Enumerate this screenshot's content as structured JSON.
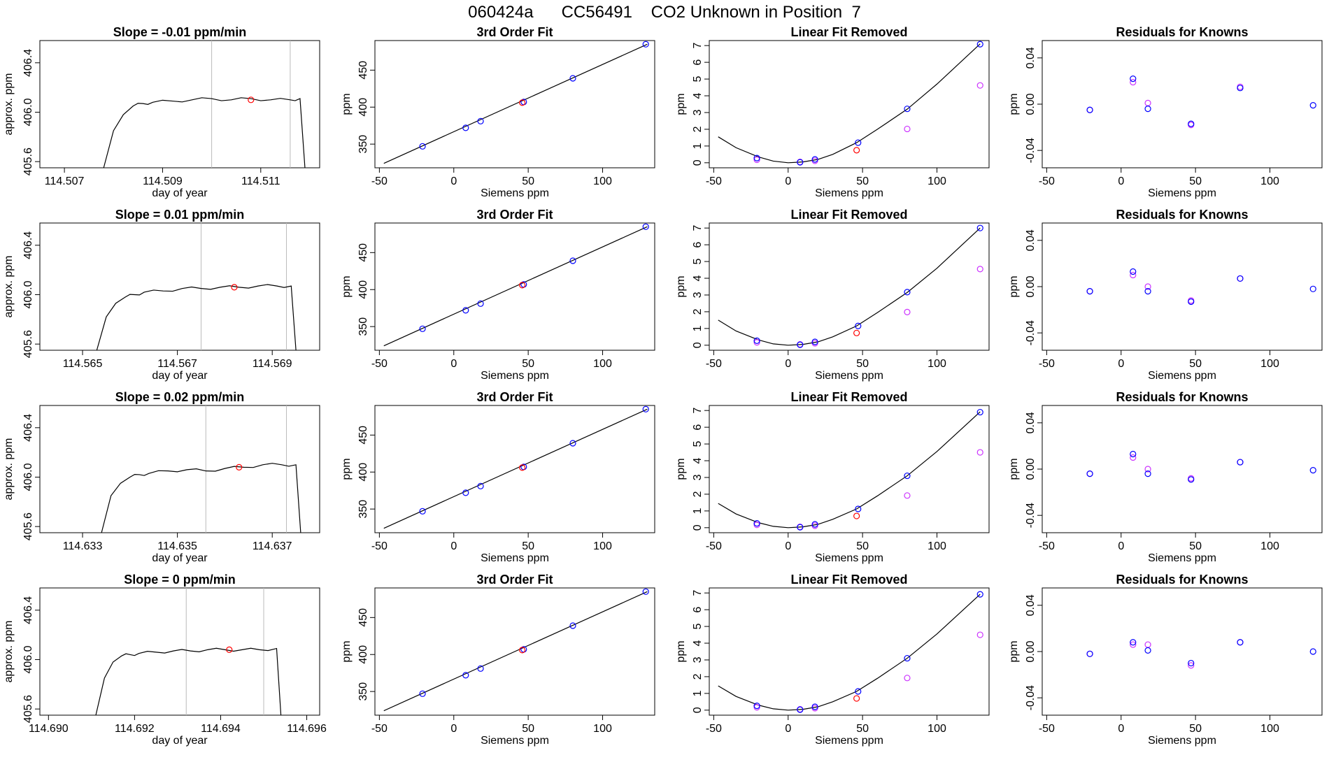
{
  "figure_title": "060424a      CC56491    CO2 Unknown in Position  7",
  "colors": {
    "line": "#000000",
    "unknown": "#ff0000",
    "known_fit": "#0000ff",
    "known_alt": "#cc33ff",
    "gridline": "#bbbbbb"
  },
  "chart_data": [
    {
      "row": 0,
      "col": 0,
      "type": "line",
      "title": "Slope =  -0.01  ppm/min",
      "xlabel": "day of year",
      "ylabel": "approx. ppm",
      "xlim": [
        114.5065,
        114.5122
      ],
      "ylim": [
        405.55,
        406.58
      ],
      "xticks": [
        "114.507",
        "114.509",
        "114.511"
      ],
      "yticks": [
        "405.6",
        "406.0",
        "406.4"
      ],
      "vlines": [
        114.51,
        114.5116
      ],
      "series": [
        {
          "x": [
            114.5078,
            114.508,
            114.5082,
            114.5084,
            114.5086,
            114.5088,
            114.5092,
            114.5096,
            114.51,
            114.5104,
            114.5108,
            114.5112,
            114.5116,
            114.5118,
            114.5119
          ],
          "y": [
            405.55,
            405.85,
            405.98,
            406.05,
            406.07,
            406.08,
            406.09,
            406.1,
            406.11,
            406.1,
            406.11,
            406.1,
            406.1,
            406.11,
            405.55
          ]
        }
      ],
      "unknown_point": {
        "x": 114.5108,
        "y": 406.1
      }
    },
    {
      "row": 0,
      "col": 1,
      "type": "scatter",
      "title": "3rd Order Fit",
      "xlabel": "Siemens ppm",
      "ylabel": "ppm",
      "xlim": [
        -53,
        135
      ],
      "ylim": [
        318,
        490
      ],
      "xticks": [
        "-50",
        "0",
        "50",
        "100"
      ],
      "yticks": [
        "350",
        "400",
        "450"
      ],
      "fit_line": {
        "x": [
          -47,
          130
        ],
        "y": [
          324,
          485
        ]
      },
      "known_points": {
        "x": [
          -21,
          8,
          18,
          47,
          80,
          129
        ],
        "y": [
          347,
          372,
          381,
          407,
          439,
          485
        ]
      },
      "unknown_point": {
        "x": 46,
        "y": 406
      }
    },
    {
      "row": 0,
      "col": 2,
      "type": "scatter",
      "title": "Linear Fit Removed",
      "xlabel": "Siemens ppm",
      "ylabel": "ppm",
      "xlim": [
        -53,
        135
      ],
      "ylim": [
        -0.3,
        7.3
      ],
      "xticks": [
        "-50",
        "0",
        "50",
        "100"
      ],
      "yticks": [
        "0",
        "1",
        "2",
        "3",
        "4",
        "5",
        "6",
        "7"
      ],
      "curve": {
        "x": [
          -47,
          -35,
          -20,
          -10,
          0,
          10,
          20,
          30,
          46,
          60,
          80,
          100,
          129
        ],
        "y": [
          1.55,
          0.9,
          0.35,
          0.1,
          0.0,
          0.05,
          0.2,
          0.5,
          1.2,
          2.0,
          3.2,
          4.7,
          7.1
        ]
      },
      "known_points": {
        "x": [
          -21,
          8,
          18,
          47,
          80,
          129
        ],
        "y": [
          0.28,
          0.03,
          0.2,
          1.2,
          3.22,
          7.08
        ]
      },
      "alt_points": {
        "x": [
          -21,
          8,
          18,
          80,
          129
        ],
        "y": [
          0.18,
          0.05,
          0.12,
          2.02,
          4.62
        ]
      },
      "unknown_point": {
        "x": 46,
        "y": 0.75
      }
    },
    {
      "row": 0,
      "col": 3,
      "type": "scatter",
      "title": "Residuals for Knowns",
      "xlabel": "Siemens ppm",
      "ylabel": "ppm",
      "xlim": [
        -53,
        135
      ],
      "ylim": [
        -0.055,
        0.055
      ],
      "xticks": [
        "-50",
        "0",
        "50",
        "100"
      ],
      "yticks": [
        "-0.04",
        "0.00",
        "0.04"
      ],
      "known_points": {
        "x": [
          -21,
          8,
          18,
          47,
          80,
          129
        ],
        "y": [
          -0.005,
          0.022,
          -0.004,
          -0.017,
          0.014,
          -0.001
        ]
      },
      "alt_points": {
        "x": [
          -21,
          8,
          18,
          47,
          80
        ],
        "y": [
          -0.005,
          0.019,
          0.001,
          -0.018,
          0.015
        ]
      }
    },
    {
      "row": 1,
      "col": 0,
      "type": "line",
      "title": "Slope =  0.01  ppm/min",
      "xlabel": "day of year",
      "ylabel": "approx. ppm",
      "xlim": [
        114.5641,
        114.57
      ],
      "ylim": [
        405.55,
        406.58
      ],
      "xticks": [
        "114.565",
        "114.567",
        "114.569"
      ],
      "yticks": [
        "405.6",
        "406.0",
        "406.4"
      ],
      "vlines": [
        114.5675,
        114.5693
      ],
      "series": [
        {
          "x": [
            114.5653,
            114.5655,
            114.5657,
            114.5659,
            114.5661,
            114.5663,
            114.5667,
            114.5671,
            114.5675,
            114.5679,
            114.5683,
            114.5687,
            114.5691,
            114.5694,
            114.5695
          ],
          "y": [
            405.55,
            405.82,
            405.93,
            405.98,
            406.0,
            406.02,
            406.03,
            406.05,
            406.05,
            406.06,
            406.06,
            406.07,
            406.07,
            406.07,
            405.55
          ]
        }
      ],
      "unknown_point": {
        "x": 114.5682,
        "y": 406.06
      }
    },
    {
      "row": 1,
      "col": 1,
      "type": "scatter",
      "title": "3rd Order Fit",
      "xlabel": "Siemens ppm",
      "ylabel": "ppm",
      "xlim": [
        -53,
        135
      ],
      "ylim": [
        318,
        490
      ],
      "xticks": [
        "-50",
        "0",
        "50",
        "100"
      ],
      "yticks": [
        "350",
        "400",
        "450"
      ],
      "fit_line": {
        "x": [
          -47,
          130
        ],
        "y": [
          324,
          485
        ]
      },
      "known_points": {
        "x": [
          -21,
          8,
          18,
          47,
          80,
          129
        ],
        "y": [
          347,
          372,
          381,
          407,
          439,
          485
        ]
      },
      "unknown_point": {
        "x": 46,
        "y": 406
      }
    },
    {
      "row": 1,
      "col": 2,
      "type": "scatter",
      "title": "Linear Fit Removed",
      "xlabel": "Siemens ppm",
      "ylabel": "ppm",
      "xlim": [
        -53,
        135
      ],
      "ylim": [
        -0.3,
        7.3
      ],
      "xticks": [
        "-50",
        "0",
        "50",
        "100"
      ],
      "yticks": [
        "0",
        "1",
        "2",
        "3",
        "4",
        "5",
        "6",
        "7"
      ],
      "curve": {
        "x": [
          -47,
          -35,
          -20,
          -10,
          0,
          10,
          20,
          30,
          46,
          60,
          80,
          100,
          129
        ],
        "y": [
          1.5,
          0.85,
          0.32,
          0.08,
          0.0,
          0.05,
          0.2,
          0.5,
          1.15,
          1.95,
          3.15,
          4.6,
          7.0
        ]
      },
      "known_points": {
        "x": [
          -21,
          8,
          18,
          47,
          80,
          129
        ],
        "y": [
          0.27,
          0.03,
          0.2,
          1.15,
          3.17,
          7.0
        ]
      },
      "alt_points": {
        "x": [
          -21,
          8,
          18,
          80,
          129
        ],
        "y": [
          0.17,
          0.05,
          0.12,
          1.98,
          4.55
        ]
      },
      "unknown_point": {
        "x": 46,
        "y": 0.73
      }
    },
    {
      "row": 1,
      "col": 3,
      "type": "scatter",
      "title": "Residuals for Knowns",
      "xlabel": "Siemens ppm",
      "ylabel": "ppm",
      "xlim": [
        -53,
        135
      ],
      "ylim": [
        -0.055,
        0.055
      ],
      "xticks": [
        "-50",
        "0",
        "50",
        "100"
      ],
      "yticks": [
        "-0.04",
        "0.00",
        "0.04"
      ],
      "known_points": {
        "x": [
          -21,
          8,
          18,
          47,
          80,
          129
        ],
        "y": [
          -0.004,
          0.013,
          -0.004,
          -0.013,
          0.007,
          -0.002
        ]
      },
      "alt_points": {
        "x": [
          -21,
          8,
          18,
          47,
          80
        ],
        "y": [
          -0.004,
          0.01,
          0.0,
          -0.012,
          0.007
        ]
      }
    },
    {
      "row": 2,
      "col": 0,
      "type": "line",
      "title": "Slope =  0.02  ppm/min",
      "xlabel": "day of year",
      "ylabel": "approx. ppm",
      "xlim": [
        114.6321,
        114.638
      ],
      "ylim": [
        405.55,
        406.58
      ],
      "xticks": [
        "114.633",
        "114.635",
        "114.637"
      ],
      "yticks": [
        "405.6",
        "406.0",
        "406.4"
      ],
      "vlines": [
        114.6356,
        114.6373
      ],
      "series": [
        {
          "x": [
            114.6334,
            114.6336,
            114.6338,
            114.634,
            114.6342,
            114.6344,
            114.6348,
            114.6352,
            114.6356,
            114.636,
            114.6364,
            114.6368,
            114.6372,
            114.6375,
            114.6376
          ],
          "y": [
            405.55,
            405.85,
            405.95,
            406.0,
            406.02,
            406.03,
            406.05,
            406.06,
            406.05,
            406.07,
            406.08,
            406.1,
            406.1,
            406.1,
            405.55
          ]
        }
      ],
      "unknown_point": {
        "x": 114.6363,
        "y": 406.08
      }
    },
    {
      "row": 2,
      "col": 1,
      "type": "scatter",
      "title": "3rd Order Fit",
      "xlabel": "Siemens ppm",
      "ylabel": "ppm",
      "xlim": [
        -53,
        135
      ],
      "ylim": [
        318,
        490
      ],
      "xticks": [
        "-50",
        "0",
        "50",
        "100"
      ],
      "yticks": [
        "350",
        "400",
        "450"
      ],
      "fit_line": {
        "x": [
          -47,
          130
        ],
        "y": [
          324,
          485
        ]
      },
      "known_points": {
        "x": [
          -21,
          8,
          18,
          47,
          80,
          129
        ],
        "y": [
          347,
          372,
          381,
          407,
          439,
          485
        ]
      },
      "unknown_point": {
        "x": 46,
        "y": 406
      }
    },
    {
      "row": 2,
      "col": 2,
      "type": "scatter",
      "title": "Linear Fit Removed",
      "xlabel": "Siemens ppm",
      "ylabel": "ppm",
      "xlim": [
        -53,
        135
      ],
      "ylim": [
        -0.3,
        7.3
      ],
      "xticks": [
        "-50",
        "0",
        "50",
        "100"
      ],
      "yticks": [
        "0",
        "1",
        "2",
        "3",
        "4",
        "5",
        "6",
        "7"
      ],
      "curve": {
        "x": [
          -47,
          -35,
          -20,
          -10,
          0,
          10,
          20,
          30,
          46,
          60,
          80,
          100,
          129
        ],
        "y": [
          1.45,
          0.82,
          0.3,
          0.08,
          0.0,
          0.05,
          0.2,
          0.5,
          1.12,
          1.9,
          3.1,
          4.55,
          6.92
        ]
      },
      "known_points": {
        "x": [
          -21,
          8,
          18,
          47,
          80,
          129
        ],
        "y": [
          0.26,
          0.03,
          0.2,
          1.12,
          3.1,
          6.9
        ]
      },
      "alt_points": {
        "x": [
          -21,
          8,
          18,
          80,
          129
        ],
        "y": [
          0.17,
          0.05,
          0.12,
          1.92,
          4.5
        ]
      },
      "unknown_point": {
        "x": 46,
        "y": 0.7
      }
    },
    {
      "row": 2,
      "col": 3,
      "type": "scatter",
      "title": "Residuals for Knowns",
      "xlabel": "Siemens ppm",
      "ylabel": "ppm",
      "xlim": [
        -53,
        135
      ],
      "ylim": [
        -0.055,
        0.055
      ],
      "xticks": [
        "-50",
        "0",
        "50",
        "100"
      ],
      "yticks": [
        "-0.04",
        "0.00",
        "0.04"
      ],
      "known_points": {
        "x": [
          -21,
          8,
          18,
          47,
          80,
          129
        ],
        "y": [
          -0.004,
          0.013,
          -0.004,
          -0.009,
          0.006,
          -0.001
        ]
      },
      "alt_points": {
        "x": [
          -21,
          8,
          18,
          47,
          80
        ],
        "y": [
          -0.004,
          0.01,
          0.0,
          -0.008,
          0.006
        ]
      }
    },
    {
      "row": 3,
      "col": 0,
      "type": "line",
      "title": "Slope =  0  ppm/min",
      "xlabel": "day of year",
      "ylabel": "approx. ppm",
      "xlim": [
        114.6898,
        114.6963
      ],
      "ylim": [
        405.55,
        406.58
      ],
      "xticks": [
        "114.690",
        "114.692",
        "114.694",
        "114.696"
      ],
      "yticks": [
        "405.6",
        "406.0",
        "406.4"
      ],
      "vlines": [
        114.6932,
        114.695
      ],
      "series": [
        {
          "x": [
            114.6911,
            114.6913,
            114.6915,
            114.6917,
            114.6919,
            114.6921,
            114.6925,
            114.6929,
            114.6933,
            114.6937,
            114.6941,
            114.6945,
            114.6949,
            114.6953,
            114.6954
          ],
          "y": [
            405.55,
            405.85,
            405.98,
            406.03,
            406.04,
            406.05,
            406.06,
            406.07,
            406.07,
            406.08,
            406.08,
            406.08,
            406.08,
            406.09,
            405.55
          ]
        }
      ],
      "unknown_point": {
        "x": 114.6942,
        "y": 406.08
      }
    },
    {
      "row": 3,
      "col": 1,
      "type": "scatter",
      "title": "3rd Order Fit",
      "xlabel": "Siemens ppm",
      "ylabel": "ppm",
      "xlim": [
        -53,
        135
      ],
      "ylim": [
        318,
        490
      ],
      "xticks": [
        "-50",
        "0",
        "50",
        "100"
      ],
      "yticks": [
        "350",
        "400",
        "450"
      ],
      "fit_line": {
        "x": [
          -47,
          130
        ],
        "y": [
          324,
          485
        ]
      },
      "known_points": {
        "x": [
          -21,
          8,
          18,
          47,
          80,
          129
        ],
        "y": [
          347,
          372,
          381,
          407,
          439,
          485
        ]
      },
      "unknown_point": {
        "x": 46,
        "y": 406
      }
    },
    {
      "row": 3,
      "col": 2,
      "type": "scatter",
      "title": "Linear Fit Removed",
      "xlabel": "Siemens ppm",
      "ylabel": "ppm",
      "xlim": [
        -53,
        135
      ],
      "ylim": [
        -0.3,
        7.3
      ],
      "xticks": [
        "-50",
        "0",
        "50",
        "100"
      ],
      "yticks": [
        "0",
        "1",
        "2",
        "3",
        "4",
        "5",
        "6",
        "7"
      ],
      "curve": {
        "x": [
          -47,
          -35,
          -20,
          -10,
          0,
          10,
          20,
          30,
          46,
          60,
          80,
          100,
          129
        ],
        "y": [
          1.45,
          0.82,
          0.3,
          0.08,
          0.0,
          0.05,
          0.2,
          0.5,
          1.12,
          1.9,
          3.1,
          4.55,
          6.92
        ]
      },
      "known_points": {
        "x": [
          -21,
          8,
          18,
          47,
          80,
          129
        ],
        "y": [
          0.26,
          0.03,
          0.2,
          1.12,
          3.1,
          6.92
        ]
      },
      "alt_points": {
        "x": [
          -21,
          8,
          18,
          80,
          129
        ],
        "y": [
          0.17,
          0.05,
          0.12,
          1.92,
          4.5
        ]
      },
      "unknown_point": {
        "x": 46,
        "y": 0.7
      }
    },
    {
      "row": 3,
      "col": 3,
      "type": "scatter",
      "title": "Residuals for Knowns",
      "xlabel": "Siemens ppm",
      "ylabel": "ppm",
      "xlim": [
        -53,
        135
      ],
      "ylim": [
        -0.055,
        0.055
      ],
      "xticks": [
        "-50",
        "0",
        "50",
        "100"
      ],
      "yticks": [
        "-0.04",
        "0.00",
        "0.04"
      ],
      "known_points": {
        "x": [
          -21,
          8,
          18,
          47,
          80,
          129
        ],
        "y": [
          -0.002,
          0.008,
          0.001,
          -0.01,
          0.008,
          0.0
        ]
      },
      "alt_points": {
        "x": [
          -21,
          8,
          18,
          47,
          80
        ],
        "y": [
          -0.002,
          0.006,
          0.006,
          -0.012,
          0.008
        ]
      }
    }
  ]
}
